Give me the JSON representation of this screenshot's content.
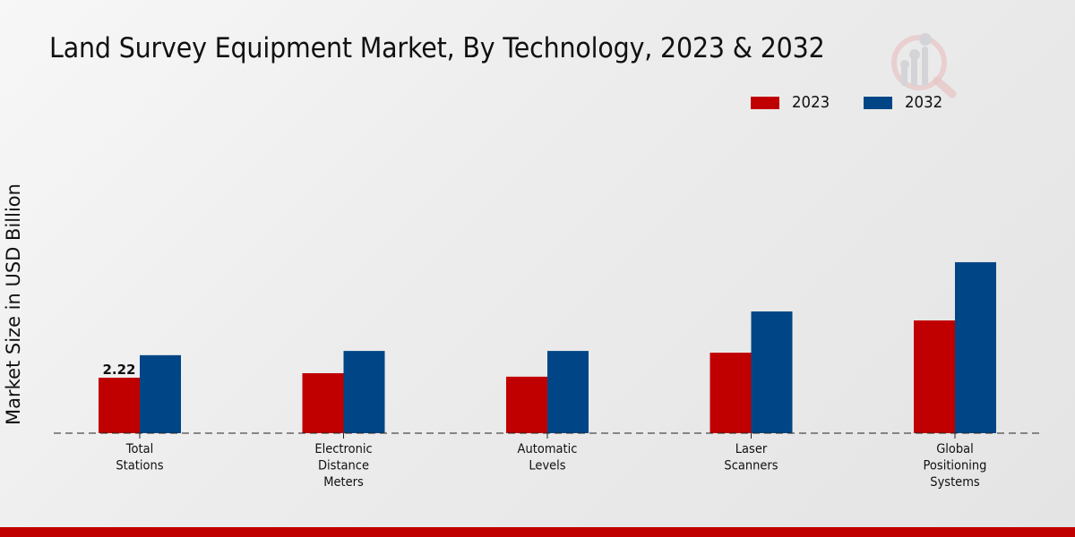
{
  "chart_data": {
    "type": "bar",
    "title": "Land Survey Equipment Market, By Technology, 2023 & 2032",
    "xlabel": "",
    "ylabel": "Market Size in USD Billion",
    "categories": [
      [
        "Total",
        "Stations"
      ],
      [
        "Electronic",
        "Distance",
        "Meters"
      ],
      [
        "Automatic",
        "Levels"
      ],
      [
        "Laser",
        "Scanners"
      ],
      [
        "Global",
        "Positioning",
        "Systems"
      ]
    ],
    "series": [
      {
        "name": "2023",
        "color": "#c00000",
        "values": [
          2.22,
          2.4,
          2.26,
          3.22,
          4.51
        ]
      },
      {
        "name": "2032",
        "color": "#004687",
        "values": [
          3.12,
          3.29,
          3.29,
          4.87,
          6.84
        ]
      }
    ],
    "data_labels": [
      {
        "series": 0,
        "index": 0,
        "text": "2.22"
      }
    ],
    "ylim": [
      0,
      13
    ],
    "grid": false,
    "baseline_style": "dashed",
    "legend_position": "top-right"
  },
  "footer_color": "#c00000"
}
